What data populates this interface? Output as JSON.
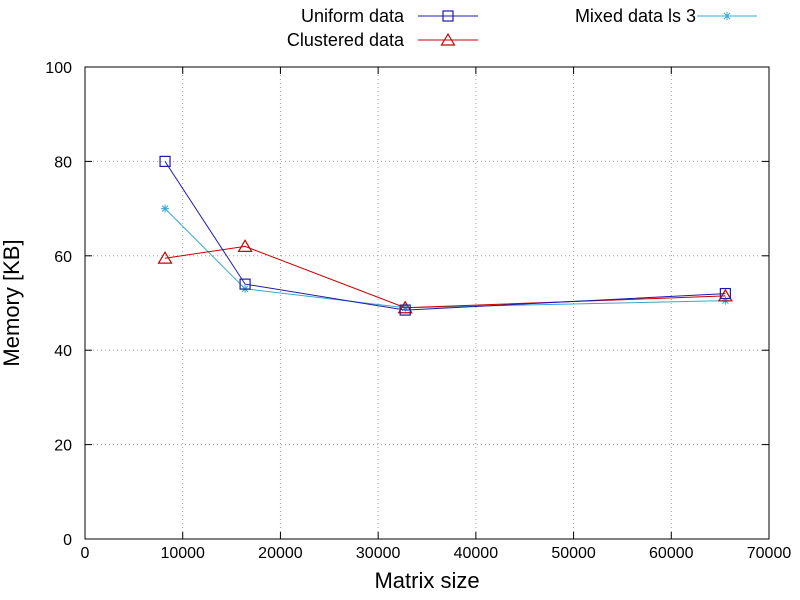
{
  "chart_data": {
    "type": "line",
    "xlabel": "Matrix size",
    "ylabel": "Memory [KB]",
    "xlim": [
      0,
      70000
    ],
    "ylim": [
      0,
      100
    ],
    "xticks": [
      0,
      10000,
      20000,
      30000,
      40000,
      50000,
      60000,
      70000
    ],
    "yticks": [
      0,
      20,
      40,
      60,
      80,
      100
    ],
    "grid": true,
    "legend_position": "top",
    "series": [
      {
        "name": "Uniform data",
        "color": "#1c1ca8",
        "marker": "square",
        "x": [
          8192,
          16384,
          32768,
          65536
        ],
        "y": [
          80,
          54,
          48.5,
          52
        ]
      },
      {
        "name": "Clustered data",
        "color": "#cc0000",
        "marker": "triangle",
        "x": [
          8192,
          16384,
          32768,
          65536
        ],
        "y": [
          59.5,
          62,
          49,
          51.5
        ]
      },
      {
        "name": "Mixed data ls 3",
        "color": "#33a8d6",
        "marker": "asterisk",
        "x": [
          8192,
          16384,
          32768,
          65536
        ],
        "y": [
          70,
          53,
          49,
          50.5
        ]
      }
    ]
  }
}
